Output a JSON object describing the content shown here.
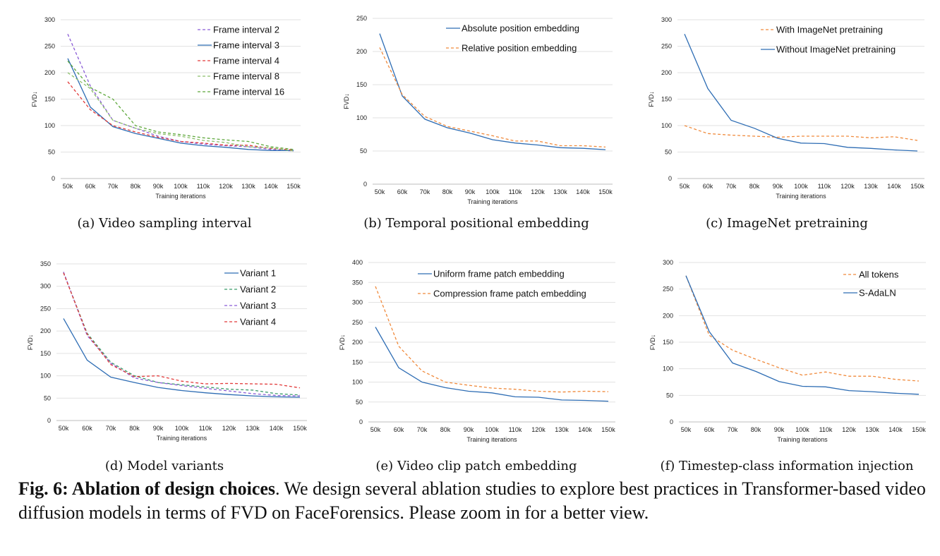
{
  "chart_data": [
    {
      "type": "line",
      "caption": "(a) Video sampling interval",
      "categories": [
        "50k",
        "60k",
        "70k",
        "80k",
        "90k",
        "100k",
        "110k",
        "120k",
        "130k",
        "140k",
        "150k"
      ],
      "xlabel": "Training iterations",
      "ylabel": "FVD↓",
      "ylim": [
        0,
        300
      ],
      "yticks": [
        0,
        50,
        100,
        150,
        200,
        250,
        300
      ],
      "legend_position": "top-right",
      "series": [
        {
          "name": "Frame interval 2",
          "color": "#8a5cd6",
          "dash": true,
          "values": [
            273,
            175,
            110,
            95,
            80,
            70,
            65,
            62,
            60,
            55,
            52
          ]
        },
        {
          "name": "Frame interval 3",
          "color": "#2e6db4",
          "dash": false,
          "values": [
            227,
            135,
            98,
            85,
            76,
            67,
            62,
            59,
            55,
            53,
            53
          ]
        },
        {
          "name": "Frame interval 4",
          "color": "#e23b3b",
          "dash": true,
          "values": [
            183,
            130,
            100,
            88,
            78,
            70,
            67,
            63,
            63,
            57,
            54
          ]
        },
        {
          "name": "Frame interval 8",
          "color": "#8cbf6b",
          "dash": true,
          "values": [
            200,
            170,
            110,
            95,
            85,
            80,
            72,
            68,
            60,
            58,
            52
          ]
        },
        {
          "name": "Frame interval 16",
          "color": "#5ea83c",
          "dash": true,
          "values": [
            222,
            172,
            150,
            100,
            88,
            83,
            77,
            73,
            70,
            60,
            55
          ]
        }
      ]
    },
    {
      "type": "line",
      "caption": "(b) Temporal positional embedding",
      "categories": [
        "50k",
        "60k",
        "70k",
        "80k",
        "90k",
        "100k",
        "110k",
        "120k",
        "130k",
        "140k",
        "150k"
      ],
      "xlabel": "Training iterations",
      "ylabel": "FVD↓",
      "ylim": [
        0,
        250
      ],
      "yticks": [
        0,
        50,
        100,
        150,
        200,
        250
      ],
      "legend_position": "top-right",
      "series": [
        {
          "name": "Absolute position embedding",
          "color": "#2e6db4",
          "dash": false,
          "values": [
            227,
            133,
            98,
            85,
            77,
            67,
            62,
            59,
            55,
            54,
            52
          ]
        },
        {
          "name": "Relative position embedding",
          "color": "#f08a3c",
          "dash": true,
          "values": [
            206,
            135,
            102,
            87,
            80,
            73,
            65,
            65,
            58,
            58,
            56
          ]
        }
      ]
    },
    {
      "type": "line",
      "caption": "(c) ImageNet pretraining",
      "categories": [
        "50k",
        "60k",
        "70k",
        "80k",
        "90k",
        "100k",
        "110k",
        "120k",
        "130k",
        "140k",
        "150k"
      ],
      "xlabel": "Training iterations",
      "ylabel": "FVD↓",
      "ylim": [
        0,
        300
      ],
      "yticks": [
        0,
        50,
        100,
        150,
        200,
        250,
        300
      ],
      "legend_position": "top-right",
      "series": [
        {
          "name": "With ImageNet pretraining",
          "color": "#f08a3c",
          "dash": true,
          "values": [
            100,
            85,
            82,
            80,
            78,
            80,
            80,
            80,
            77,
            79,
            72
          ]
        },
        {
          "name": "Without ImageNet pretraining",
          "color": "#2e6db4",
          "dash": false,
          "values": [
            273,
            170,
            110,
            95,
            76,
            67,
            66,
            59,
            57,
            54,
            52
          ]
        }
      ]
    },
    {
      "type": "line",
      "caption": "(d) Model variants",
      "categories": [
        "50k",
        "60k",
        "70k",
        "80k",
        "90k",
        "100k",
        "110k",
        "120k",
        "130k",
        "140k",
        "150k"
      ],
      "xlabel": "Training iterations",
      "ylabel": "FVD↓",
      "ylim": [
        0,
        350
      ],
      "yticks": [
        0,
        50,
        100,
        150,
        200,
        250,
        300,
        350
      ],
      "legend_position": "top-right",
      "series": [
        {
          "name": "Variant 1",
          "color": "#2e6db4",
          "dash": false,
          "values": [
            228,
            135,
            97,
            85,
            74,
            67,
            62,
            58,
            55,
            53,
            52
          ]
        },
        {
          "name": "Variant 2",
          "color": "#3a9a6a",
          "dash": true,
          "values": [
            330,
            195,
            130,
            100,
            85,
            80,
            75,
            70,
            68,
            60,
            57
          ]
        },
        {
          "name": "Variant 3",
          "color": "#8a5cd6",
          "dash": true,
          "values": [
            332,
            190,
            128,
            95,
            85,
            78,
            72,
            66,
            60,
            56,
            55
          ]
        },
        {
          "name": "Variant 4",
          "color": "#e23b3b",
          "dash": true,
          "values": [
            330,
            193,
            125,
            98,
            100,
            88,
            82,
            83,
            82,
            81,
            73
          ]
        }
      ]
    },
    {
      "type": "line",
      "caption": "(e) Video clip patch embedding",
      "categories": [
        "50k",
        "60k",
        "70k",
        "80k",
        "90k",
        "100k",
        "110k",
        "120k",
        "130k",
        "140k",
        "150k"
      ],
      "xlabel": "Training iterations",
      "ylabel": "FVD↓",
      "ylim": [
        0,
        400
      ],
      "yticks": [
        0,
        50,
        100,
        150,
        200,
        250,
        300,
        350,
        400
      ],
      "legend_position": "top-right",
      "series": [
        {
          "name": "Uniform frame patch embedding",
          "color": "#2e6db4",
          "dash": false,
          "values": [
            238,
            136,
            100,
            86,
            77,
            73,
            63,
            62,
            55,
            54,
            52
          ]
        },
        {
          "name": "Compression frame patch embedding",
          "color": "#f08a3c",
          "dash": true,
          "values": [
            340,
            190,
            128,
            100,
            92,
            85,
            82,
            77,
            75,
            77,
            76
          ]
        }
      ]
    },
    {
      "type": "line",
      "caption": "(f) Timestep-class information injection",
      "categories": [
        "50k",
        "60k",
        "70k",
        "80k",
        "90k",
        "100k",
        "110k",
        "120k",
        "130k",
        "140k",
        "150k"
      ],
      "xlabel": "Training iterations",
      "ylabel": "FVD↓",
      "ylim": [
        0,
        300
      ],
      "yticks": [
        0,
        50,
        100,
        150,
        200,
        250,
        300
      ],
      "legend_position": "top-right",
      "series": [
        {
          "name": "All tokens",
          "color": "#f08a3c",
          "dash": true,
          "values": [
            275,
            163,
            135,
            118,
            102,
            88,
            94,
            86,
            86,
            80,
            77
          ]
        },
        {
          "name": "S-AdaLN",
          "color": "#2e6db4",
          "dash": false,
          "values": [
            275,
            170,
            111,
            95,
            76,
            67,
            66,
            59,
            57,
            54,
            52
          ]
        }
      ]
    }
  ],
  "figure_caption": {
    "label": "Fig. 6",
    "title": "Ablation of design choices",
    "text": ". We design several ablation studies to explore best practices in Transformer-based video diffusion models in terms of FVD on FaceForensics. Please zoom in for a better view."
  }
}
